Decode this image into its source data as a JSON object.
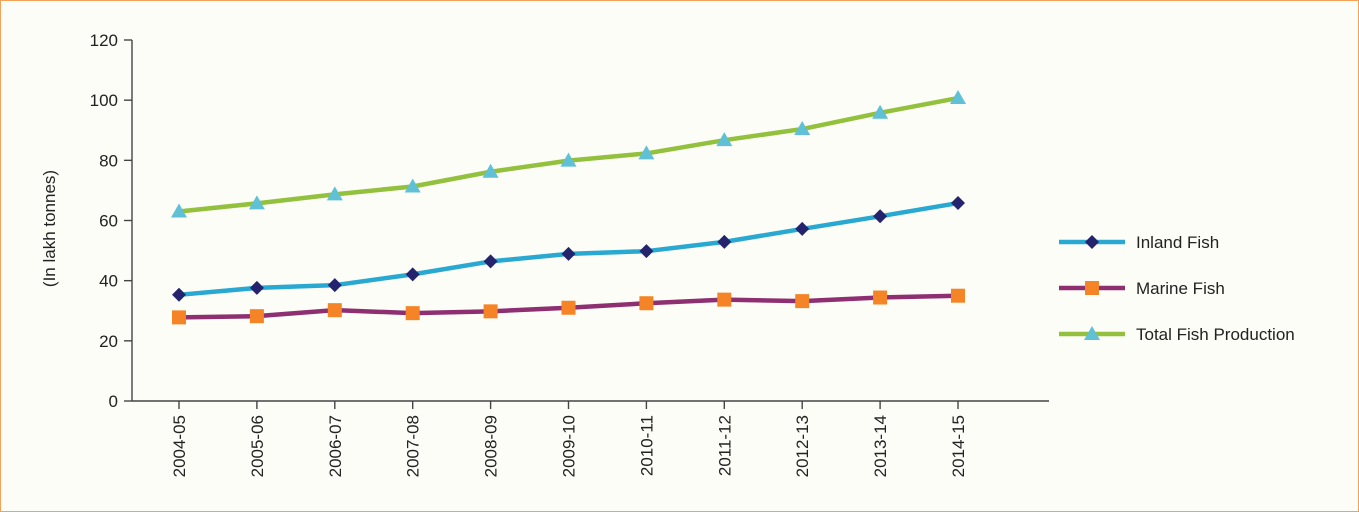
{
  "chart_data": {
    "type": "line",
    "title": "",
    "xlabel": "",
    "ylabel": "(In lakh tonnes)",
    "ylim": [
      0,
      120
    ],
    "yticks": [
      0,
      20,
      40,
      60,
      80,
      100,
      120
    ],
    "grid": false,
    "legend_position": "right",
    "categories": [
      "2004-05",
      "2005-06",
      "2006-07",
      "2007-08",
      "2008-09",
      "2009-10",
      "2010-11",
      "2011-12",
      "2012-13",
      "2013-14",
      "2014-15"
    ],
    "series": [
      {
        "name": "Inland Fish",
        "color": "#29a9d1",
        "marker_color": "#23236e",
        "marker": "diamond",
        "values": [
          35.3,
          37.6,
          38.5,
          42.1,
          46.4,
          48.9,
          49.8,
          52.9,
          57.2,
          61.4,
          65.8
        ]
      },
      {
        "name": "Marine Fish",
        "color": "#8e2f72",
        "marker_color": "#f58426",
        "marker": "square",
        "values": [
          27.8,
          28.2,
          30.2,
          29.2,
          29.8,
          31.0,
          32.5,
          33.7,
          33.2,
          34.4,
          35.0
        ]
      },
      {
        "name": "Total Fish Production",
        "color": "#93c13d",
        "marker_color": "#5fc0d6",
        "marker": "triangle",
        "values": [
          63.0,
          65.7,
          68.7,
          71.3,
          76.2,
          79.9,
          82.3,
          86.7,
          90.4,
          95.8,
          100.7
        ]
      }
    ]
  }
}
